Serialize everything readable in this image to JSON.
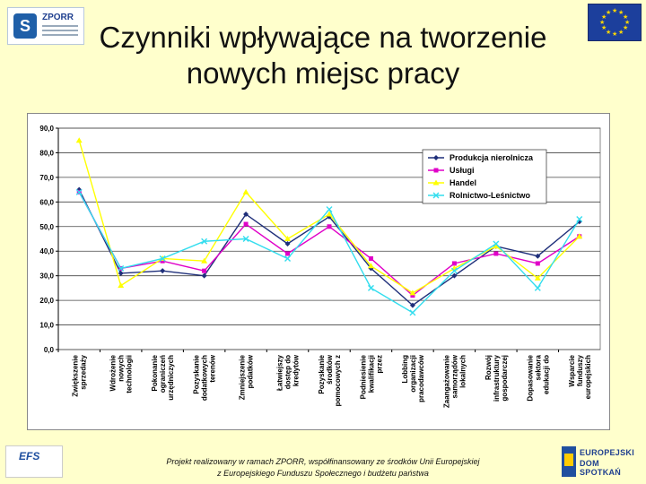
{
  "header": {
    "logo_text": "ZPORR",
    "title_line1": "Czynniki wpływające na tworzenie",
    "title_line2": "nowych miejsc pracy"
  },
  "footer": {
    "line1": "Projekt realizowany w ramach ZPORR, współfinansowany ze środków Unii Europejskiej",
    "line2": "z Europejskiego Funduszu Społecznego i budżetu państwa",
    "efs_logo": "EFS",
    "ue_logo_line1": "EUROPEJSKI",
    "ue_logo_line2": "DOM SPOTKAŃ"
  },
  "chart_data": {
    "type": "line",
    "ylim": [
      0,
      90
    ],
    "yticks": [
      "0,0",
      "10,0",
      "20,0",
      "30,0",
      "40,0",
      "50,0",
      "60,0",
      "70,0",
      "80,0",
      "90,0"
    ],
    "categories": [
      [
        "Zwiększenie",
        "sprzedaży"
      ],
      [
        "Wdrożenie",
        "nowych",
        "technologii"
      ],
      [
        "Pokonanie",
        "ograniczeń",
        "urzędniczych"
      ],
      [
        "Pozyskanie",
        "dodatkowych",
        "terenów"
      ],
      [
        "Zmniejszenie",
        "podatków"
      ],
      [
        "Łatwiejszy",
        "dostęp do",
        "kredytów"
      ],
      [
        "Pozyskanie",
        "środków",
        "pomocowych z"
      ],
      [
        "Podniesienie",
        "kwalifikacji",
        "przez"
      ],
      [
        "Lobbing",
        "organizacji",
        "pracodawców"
      ],
      [
        "Zaangażowanie",
        "samorządów",
        "lokalnych"
      ],
      [
        "Rozwój",
        "infrastruktury",
        "gospodarczej"
      ],
      [
        "Dopasowanie",
        "sektora",
        "edukacji do"
      ],
      [
        "Wsparcie",
        "funduszy",
        "europejskich"
      ]
    ],
    "series": [
      {
        "name": "Produkcja nierolnicza",
        "color": "#1f2f7a",
        "marker": "diamond",
        "values": [
          65,
          31,
          32,
          30,
          55,
          43,
          54,
          33,
          18,
          30,
          42,
          38,
          52
        ]
      },
      {
        "name": "Usługi",
        "color": "#e000c8",
        "marker": "square",
        "values": [
          64,
          33,
          36,
          32,
          51,
          39,
          50,
          37,
          22,
          35,
          39,
          35,
          46
        ]
      },
      {
        "name": "Handel",
        "color": "#ffff00",
        "marker": "triangle",
        "values": [
          85,
          26,
          37,
          36,
          64,
          45,
          55,
          34,
          23,
          33,
          42,
          29,
          46
        ]
      },
      {
        "name": "Rolnictwo-Leśnictwo",
        "color": "#33ddee",
        "marker": "x",
        "values": [
          64,
          33,
          37,
          44,
          45,
          37,
          57,
          25,
          15,
          32,
          43,
          25,
          53
        ]
      }
    ],
    "grid": true,
    "legend_position": "top-right"
  }
}
